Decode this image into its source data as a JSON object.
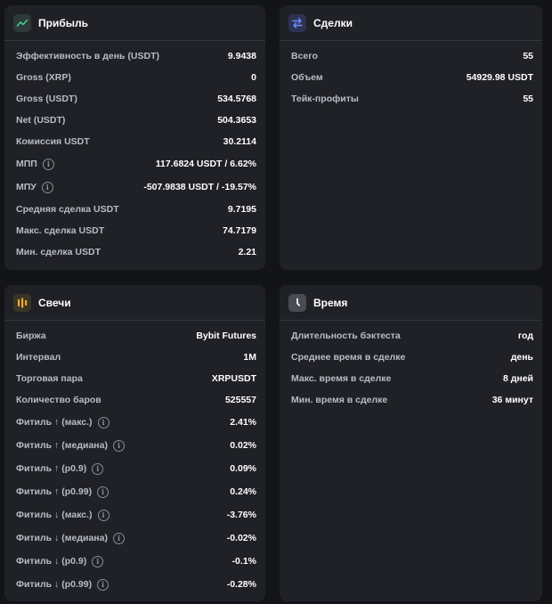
{
  "profit": {
    "title": "Прибыль",
    "icon": "trend-chart-icon",
    "rows": [
      {
        "label": "Эффективность в день (USDT)",
        "value": "9.9438"
      },
      {
        "label": "Gross (XRP)",
        "value": "0"
      },
      {
        "label": "Gross (USDT)",
        "value": "534.5768"
      },
      {
        "label": "Net (USDT)",
        "value": "504.3653"
      },
      {
        "label": "Комиссия USDT",
        "value": "30.2114"
      },
      {
        "label": "МПП",
        "value": "117.6824 USDT / 6.62%"
      },
      {
        "label": "МПУ",
        "value": "-507.9838 USDT / -19.57%"
      },
      {
        "label": "Средняя сделка USDT",
        "value": "9.7195"
      },
      {
        "label": "Макс. сделка USDT",
        "value": "74.7179"
      },
      {
        "label": "Мин. сделка USDT",
        "value": "2.21"
      }
    ]
  },
  "deals": {
    "title": "Сделки",
    "icon": "swap-arrows-icon",
    "rows": [
      {
        "label": "Всего",
        "value": "55"
      },
      {
        "label": "Объем",
        "value": "54929.98 USDT"
      },
      {
        "label": "Тейк-профиты",
        "value": "55"
      }
    ]
  },
  "candles": {
    "title": "Свечи",
    "icon": "candlestick-icon",
    "rows": [
      {
        "label": "Биржа",
        "value": "Bybit Futures"
      },
      {
        "label": "Интервал",
        "value": "1M"
      },
      {
        "label": "Торговая пара",
        "value": "XRPUSDT"
      },
      {
        "label": "Количество баров",
        "value": "525557"
      },
      {
        "label": "Фитиль ↑ (макс.)",
        "value": "2.41%"
      },
      {
        "label": "Фитиль ↑ (медиана)",
        "value": "0.02%"
      },
      {
        "label": "Фитиль ↑ (p0.9)",
        "value": "0.09%"
      },
      {
        "label": "Фитиль ↑ (p0.99)",
        "value": "0.24%"
      },
      {
        "label": "Фитиль ↓ (макс.)",
        "value": "-3.76%"
      },
      {
        "label": "Фитиль ↓ (медиана)",
        "value": "-0.02%"
      },
      {
        "label": "Фитиль ↓ (p0.9)",
        "value": "-0.1%"
      },
      {
        "label": "Фитиль ↓ (p0.99)",
        "value": "-0.28%"
      }
    ]
  },
  "time": {
    "title": "Время",
    "icon": "clock-icon",
    "rows": [
      {
        "label": "Длительность бэктеста",
        "value": "год"
      },
      {
        "label": "Среднее время в сделке",
        "value": "день"
      },
      {
        "label": "Макс. время в сделке",
        "value": "8 дней"
      },
      {
        "label": "Мин. время в сделке",
        "value": "36 минут"
      }
    ]
  },
  "info_glyph": "i",
  "colors": {
    "page_bg": "#131417",
    "card_bg": "#202126",
    "divider": "#34363c",
    "label": "#b9bcc3",
    "value": "#ffffff",
    "profit_icon_bg": "#2e3a3a",
    "profit_icon_fg": "#3fd08a",
    "deals_icon_bg": "#2d3350",
    "deals_icon_fg": "#6d8cff",
    "candles_icon_bg": "#3a3426",
    "candles_icon_fg": "#f0a830",
    "time_icon_bg": "#4a4c55",
    "time_icon_fg": "#ffffff"
  }
}
